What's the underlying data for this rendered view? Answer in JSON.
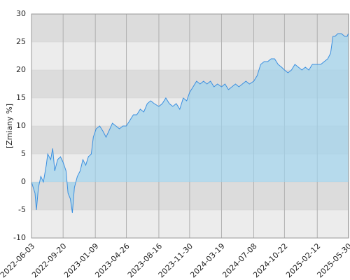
{
  "chart_data": {
    "type": "area",
    "y_label": "[Zmiany %]",
    "x": [
      "2022-06-03",
      "2022-06-15",
      "2022-06-20",
      "2022-06-27",
      "2022-07-05",
      "2022-07-14",
      "2022-07-24",
      "2022-07-29",
      "2022-08-08",
      "2022-08-15",
      "2022-08-22",
      "2022-09-01",
      "2022-09-11",
      "2022-09-20",
      "2022-09-30",
      "2022-10-07",
      "2022-10-15",
      "2022-10-22",
      "2022-10-29",
      "2022-11-08",
      "2022-11-18",
      "2022-11-27",
      "2022-12-07",
      "2022-12-16",
      "2022-12-26",
      "2023-01-02",
      "2023-01-12",
      "2023-01-24",
      "2023-02-05",
      "2023-02-15",
      "2023-02-24",
      "2023-03-09",
      "2023-03-21",
      "2023-04-02",
      "2023-04-14",
      "2023-04-26",
      "2023-05-08",
      "2023-05-20",
      "2023-06-01",
      "2023-06-13",
      "2023-06-25",
      "2023-07-07",
      "2023-07-19",
      "2023-07-31",
      "2023-08-16",
      "2023-08-28",
      "2023-09-09",
      "2023-09-21",
      "2023-10-03",
      "2023-10-15",
      "2023-10-27",
      "2023-11-08",
      "2023-11-20",
      "2023-11-30",
      "2023-12-12",
      "2023-12-24",
      "2024-01-05",
      "2024-01-17",
      "2024-01-29",
      "2024-02-10",
      "2024-02-22",
      "2024-03-05",
      "2024-03-19",
      "2024-03-31",
      "2024-04-12",
      "2024-04-24",
      "2024-05-06",
      "2024-05-18",
      "2024-05-30",
      "2024-06-11",
      "2024-06-23",
      "2024-07-08",
      "2024-07-20",
      "2024-08-01",
      "2024-08-13",
      "2024-08-25",
      "2024-09-06",
      "2024-09-18",
      "2024-09-30",
      "2024-10-12",
      "2024-10-22",
      "2024-11-03",
      "2024-11-15",
      "2024-11-27",
      "2024-12-09",
      "2024-12-21",
      "2025-01-02",
      "2025-01-14",
      "2025-01-26",
      "2025-02-12",
      "2025-02-24",
      "2025-03-08",
      "2025-03-20",
      "2025-03-30",
      "2025-04-07",
      "2025-04-14",
      "2025-04-24",
      "2025-05-06",
      "2025-05-18",
      "2025-05-26",
      "2025-05-30"
    ],
    "series": [
      {
        "color": "#3a8fe0",
        "values": [
          0,
          -2,
          -5,
          -1,
          1,
          0,
          3,
          5,
          4,
          6,
          2,
          4,
          4.5,
          3.5,
          2,
          -2,
          -3,
          -5.5,
          -1,
          1,
          2,
          4,
          3,
          4.5,
          5,
          8,
          9.5,
          10,
          9,
          8,
          9,
          10.5,
          10,
          9.5,
          10,
          10,
          11,
          12,
          12,
          13,
          12.5,
          14,
          14.5,
          14,
          13.5,
          14,
          15,
          14,
          13.5,
          14,
          13,
          15,
          14.5,
          16,
          17,
          18,
          17.5,
          18,
          17.5,
          18,
          17,
          17.5,
          17,
          17.5,
          16.5,
          17,
          17.5,
          17,
          17.5,
          18,
          17.5,
          18,
          19,
          21,
          21.5,
          21.5,
          22,
          22,
          21,
          20.5,
          20,
          19.5,
          20,
          21,
          20.5,
          20,
          20.5,
          20,
          21,
          21,
          21,
          21.5,
          22,
          23,
          26,
          26,
          26.5,
          26.5,
          26,
          26,
          26.5
        ]
      }
    ],
    "xlim": [
      "2022-06-03",
      "2025-05-31"
    ],
    "xticks": [
      "2022-06-03",
      "2022-09-20",
      "2023-01-09",
      "2023-04-26",
      "2023-08-16",
      "2023-11-30",
      "2024-03-19",
      "2024-07-08",
      "2024-10-22",
      "2025-02-12",
      "2025-05-30"
    ],
    "ylim": [
      -10,
      30
    ],
    "yticks": [
      -10,
      -5,
      0,
      5,
      10,
      15,
      20,
      25,
      30
    ],
    "grid": true
  }
}
